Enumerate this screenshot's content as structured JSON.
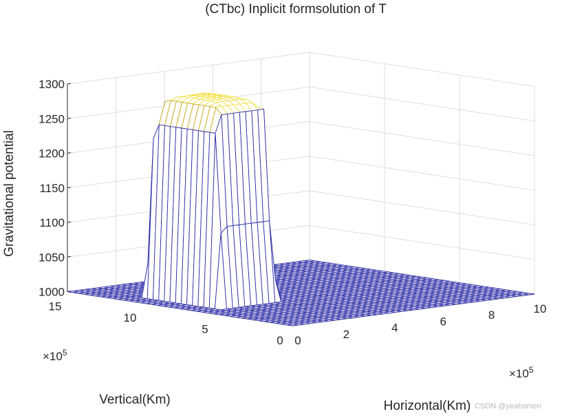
{
  "chart_data": {
    "type": "surface3d",
    "title": "(CTbc) Inplicit formsolution of T",
    "xlabel": "Horizontal(Km)",
    "ylabel": "Vertical(Km)",
    "zlabel": "Gravitational potential",
    "x_multiplier": "×10^5",
    "y_multiplier": "×10^5",
    "xlim": [
      0,
      10
    ],
    "ylim": [
      0,
      15
    ],
    "zlim": [
      1000,
      1300
    ],
    "x_ticks": [
      0,
      2,
      4,
      6,
      8,
      10
    ],
    "y_ticks": [
      0,
      5,
      10,
      15
    ],
    "z_ticks": [
      1000,
      1050,
      1100,
      1150,
      1200,
      1250,
      1300
    ],
    "grid": true,
    "colormap": "parula",
    "colors": {
      "low": "#352a87",
      "mid": "#0f8ac7",
      "high": "#f9fb0e",
      "upper": "#f5b93a"
    },
    "mesh_count": 41,
    "plateau": {
      "x_range": [
        0.9,
        3.2
      ],
      "y_range": [
        6.4,
        11.1
      ],
      "base_z": 1000,
      "peak_z": 1294,
      "shoulder_z": 1262
    }
  },
  "watermark": "CSDN @yeahamen"
}
